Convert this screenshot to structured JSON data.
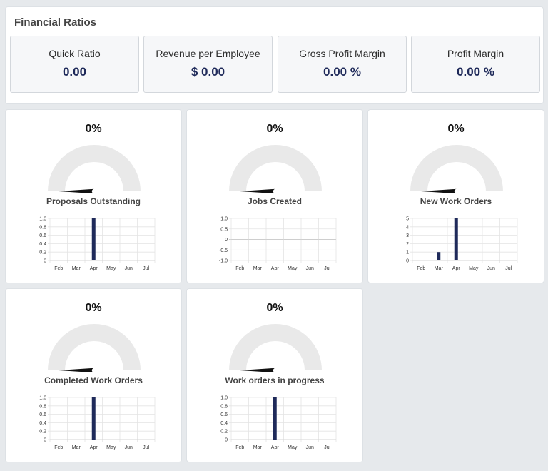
{
  "financial": {
    "title": "Financial Ratios",
    "cards": [
      {
        "label": "Quick Ratio",
        "value": "0.00"
      },
      {
        "label": "Revenue per Employee",
        "value": "$ 0.00"
      },
      {
        "label": "Gross Profit Margin",
        "value": "0.00 %"
      },
      {
        "label": "Profit Margin",
        "value": "0.00 %"
      }
    ]
  },
  "colors": {
    "accent": "#1f2a5a",
    "gauge_track": "#e9e9e9",
    "background": "#e6e9ec"
  },
  "widgets": [
    {
      "title": "Proposals Outstanding",
      "percent": "0%",
      "gauge_value": 0
    },
    {
      "title": "Jobs Created",
      "percent": "0%",
      "gauge_value": 0
    },
    {
      "title": "New Work Orders",
      "percent": "0%",
      "gauge_value": 0
    },
    {
      "title": "Completed Work Orders",
      "percent": "0%",
      "gauge_value": 0
    },
    {
      "title": "Work orders in progress",
      "percent": "0%",
      "gauge_value": 0
    }
  ],
  "chart_data": [
    {
      "type": "bar",
      "categories": [
        "Feb",
        "Mar",
        "Apr",
        "May",
        "Jun",
        "Jul"
      ],
      "values": [
        0,
        0,
        1,
        0,
        0,
        0
      ],
      "yticks": [
        "1.0",
        "0.8",
        "0.6",
        "0.4",
        "0.2",
        "0"
      ],
      "ylim": [
        0,
        1
      ],
      "grid": true
    },
    {
      "type": "bar",
      "categories": [
        "Feb",
        "Mar",
        "Apr",
        "May",
        "Jun",
        "Jul"
      ],
      "values": [
        0,
        0,
        0,
        0,
        0,
        0
      ],
      "yticks": [
        "1.0",
        "0.5",
        "0",
        "-0.5",
        "-1.0"
      ],
      "ylim": [
        -1,
        1
      ],
      "grid": true
    },
    {
      "type": "bar",
      "categories": [
        "Feb",
        "Mar",
        "Apr",
        "May",
        "Jun",
        "Jul"
      ],
      "values": [
        0,
        1,
        5,
        0,
        0,
        0
      ],
      "yticks": [
        "5",
        "4",
        "3",
        "2",
        "1",
        "0"
      ],
      "ylim": [
        0,
        5
      ],
      "grid": true
    },
    {
      "type": "bar",
      "categories": [
        "Feb",
        "Mar",
        "Apr",
        "May",
        "Jun",
        "Jul"
      ],
      "values": [
        0,
        0,
        1,
        0,
        0,
        0
      ],
      "yticks": [
        "1.0",
        "0.8",
        "0.6",
        "0.4",
        "0.2",
        "0"
      ],
      "ylim": [
        0,
        1
      ],
      "grid": true
    },
    {
      "type": "bar",
      "categories": [
        "Feb",
        "Mar",
        "Apr",
        "May",
        "Jun",
        "Jul"
      ],
      "values": [
        0,
        0,
        1,
        0,
        0,
        0
      ],
      "yticks": [
        "1.0",
        "0.8",
        "0.6",
        "0.4",
        "0.2",
        "0"
      ],
      "ylim": [
        0,
        1
      ],
      "grid": true
    }
  ]
}
